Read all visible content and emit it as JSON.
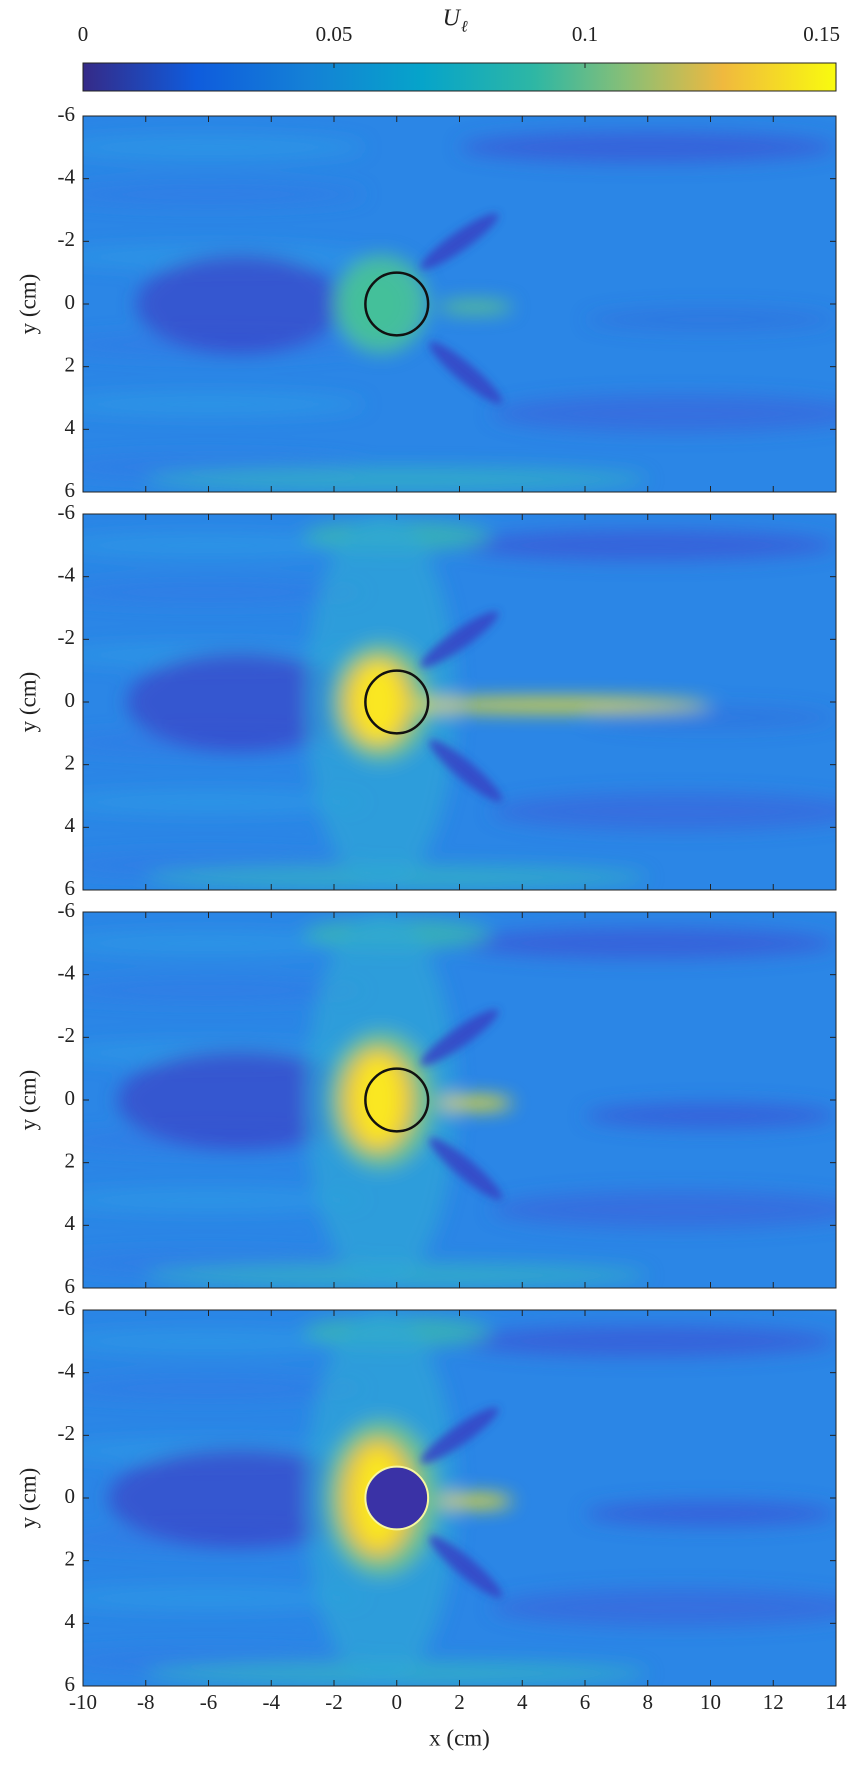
{
  "chart_data": [
    {
      "type": "colorbar",
      "label": "U",
      "label_sub": "ℓ",
      "lim": [
        0,
        0.15
      ],
      "ticks": [
        0,
        0.05,
        0.1,
        0.15
      ]
    },
    {
      "type": "heatmap",
      "strength": 1,
      "xlim": [
        -10,
        14
      ],
      "ylim": [
        -6,
        6
      ],
      "yreverse": true,
      "xticks": [
        -10,
        -8,
        -6,
        -4,
        -2,
        0,
        2,
        4,
        6,
        8,
        10,
        12,
        14
      ],
      "yticks": [
        -6,
        -4,
        -2,
        0,
        2,
        4,
        6
      ],
      "ylabel": "y (cm)",
      "xtick_labels": false,
      "circle": {
        "x": 0,
        "y": 0,
        "r": 1,
        "filled": false
      }
    },
    {
      "type": "heatmap",
      "strength": 2,
      "xlim": [
        -10,
        14
      ],
      "ylim": [
        -6,
        6
      ],
      "yreverse": true,
      "xticks": [
        -10,
        -8,
        -6,
        -4,
        -2,
        0,
        2,
        4,
        6,
        8,
        10,
        12,
        14
      ],
      "yticks": [
        -6,
        -4,
        -2,
        0,
        2,
        4,
        6
      ],
      "ylabel": "y (cm)",
      "xtick_labels": false,
      "circle": {
        "x": 0,
        "y": 0,
        "r": 1,
        "filled": false
      }
    },
    {
      "type": "heatmap",
      "strength": 3,
      "xlim": [
        -10,
        14
      ],
      "ylim": [
        -6,
        6
      ],
      "yreverse": true,
      "xticks": [
        -10,
        -8,
        -6,
        -4,
        -2,
        0,
        2,
        4,
        6,
        8,
        10,
        12,
        14
      ],
      "yticks": [
        -6,
        -4,
        -2,
        0,
        2,
        4,
        6
      ],
      "ylabel": "y (cm)",
      "xtick_labels": false,
      "circle": {
        "x": 0,
        "y": 0,
        "r": 1,
        "filled": false
      }
    },
    {
      "type": "heatmap",
      "strength": 4,
      "xlim": [
        -10,
        14
      ],
      "ylim": [
        -6,
        6
      ],
      "yreverse": true,
      "xticks": [
        -10,
        -8,
        -6,
        -4,
        -2,
        0,
        2,
        4,
        6,
        8,
        10,
        12,
        14
      ],
      "yticks": [
        -6,
        -4,
        -2,
        0,
        2,
        4,
        6
      ],
      "ylabel": "y (cm)",
      "xlabel": "x (cm)",
      "xtick_labels": true,
      "circle": {
        "x": 0,
        "y": 0,
        "r": 1,
        "filled": true
      }
    }
  ]
}
